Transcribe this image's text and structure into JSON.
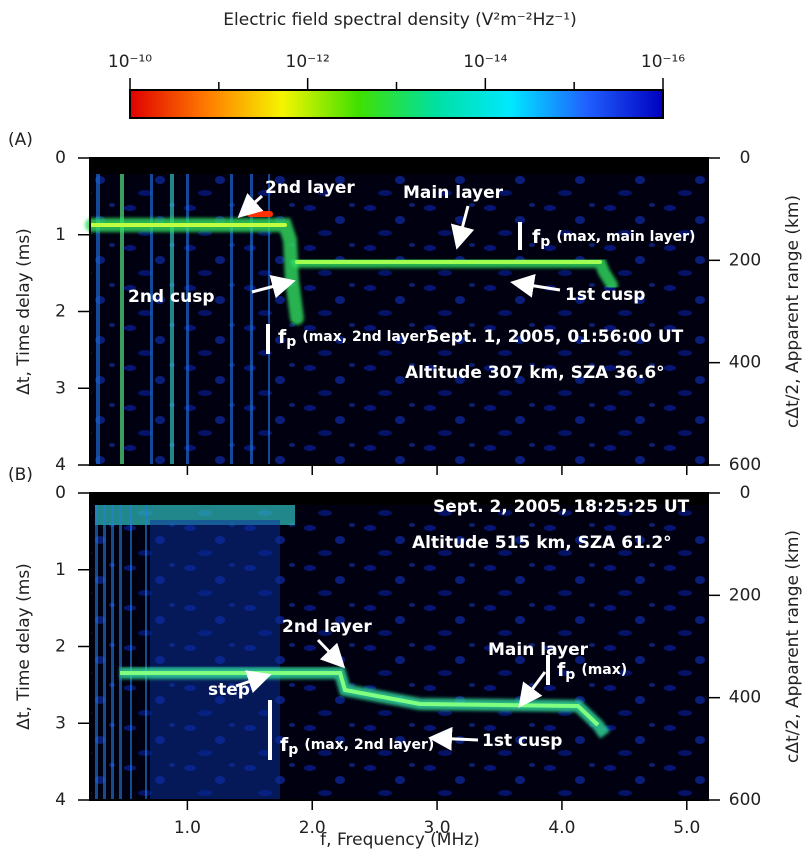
{
  "colorbar": {
    "title": "Electric field spectral density (V²m⁻²Hz⁻¹)",
    "scale": "log",
    "lim": [
      1e-10,
      1e-16
    ],
    "ticks": [
      {
        "value": 1e-10,
        "label": "10⁻¹⁰"
      },
      {
        "value": 1e-12,
        "label": "10⁻¹²"
      },
      {
        "value": 1e-14,
        "label": "10⁻¹⁴"
      },
      {
        "value": 1e-16,
        "label": "10⁻¹⁶"
      }
    ],
    "minor_ticks": [
      1e-11,
      1e-13,
      1e-15
    ],
    "colors": [
      "#e00000",
      "#ff7a00",
      "#f5f500",
      "#40e000",
      "#00e0a0",
      "#00e8ff",
      "#2060ff",
      "#0000c0"
    ]
  },
  "chart_data": [
    {
      "type": "heatmap",
      "panel_label": "(A)",
      "ylabel": "Δt, Time delay (ms)",
      "y2label": "cΔt/2, Apparent range (km)",
      "xlim": [
        0.22,
        5.17
      ],
      "xtick_marks": [
        1,
        2,
        3,
        4,
        5
      ],
      "ylim": [
        0,
        4
      ],
      "yticks": [
        0,
        1,
        2,
        3,
        4
      ],
      "y2lim": [
        0,
        600
      ],
      "y2ticks": [
        0,
        200,
        400,
        600
      ],
      "inverted_y": true,
      "annotations": [
        {
          "text": "2nd layer"
        },
        {
          "text": "Main layer"
        },
        {
          "text": "f",
          "sub": "p",
          "note": "(max, main layer)"
        },
        {
          "text": "1st cusp"
        },
        {
          "text": "2nd cusp"
        },
        {
          "text": "f",
          "sub": "p",
          "note": "(max, 2nd layer)"
        },
        {
          "text": "Sept. 1, 2005, 01:56:00 UT"
        },
        {
          "text": "Altitude 307 km, SZA 36.6°"
        }
      ]
    },
    {
      "type": "heatmap",
      "panel_label": "(B)",
      "xlabel": "f, Frequency (MHz)",
      "ylabel": "Δt, Time delay (ms)",
      "y2label": "cΔt/2, Apparent range (km)",
      "xlim": [
        0.22,
        5.17
      ],
      "xticks": [
        {
          "value": 1,
          "label": "1.0"
        },
        {
          "value": 2,
          "label": "2.0"
        },
        {
          "value": 3,
          "label": "3.0"
        },
        {
          "value": 4,
          "label": "4.0"
        },
        {
          "value": 5,
          "label": "5.0"
        }
      ],
      "ylim": [
        0,
        4
      ],
      "yticks": [
        0,
        1,
        2,
        3,
        4
      ],
      "y2lim": [
        0,
        600
      ],
      "y2ticks": [
        0,
        200,
        400,
        600
      ],
      "inverted_y": true,
      "annotations": [
        {
          "text": "Sept. 2, 2005, 18:25:25 UT"
        },
        {
          "text": "Altitude 515 km, SZA 61.2°"
        },
        {
          "text": "2nd layer"
        },
        {
          "text": "Main layer"
        },
        {
          "text": "f",
          "sub": "p",
          "note": "(max)"
        },
        {
          "text": "step"
        },
        {
          "text": "1st cusp"
        },
        {
          "text": "f",
          "sub": "p",
          "note": "(max, 2nd layer)"
        }
      ]
    }
  ]
}
